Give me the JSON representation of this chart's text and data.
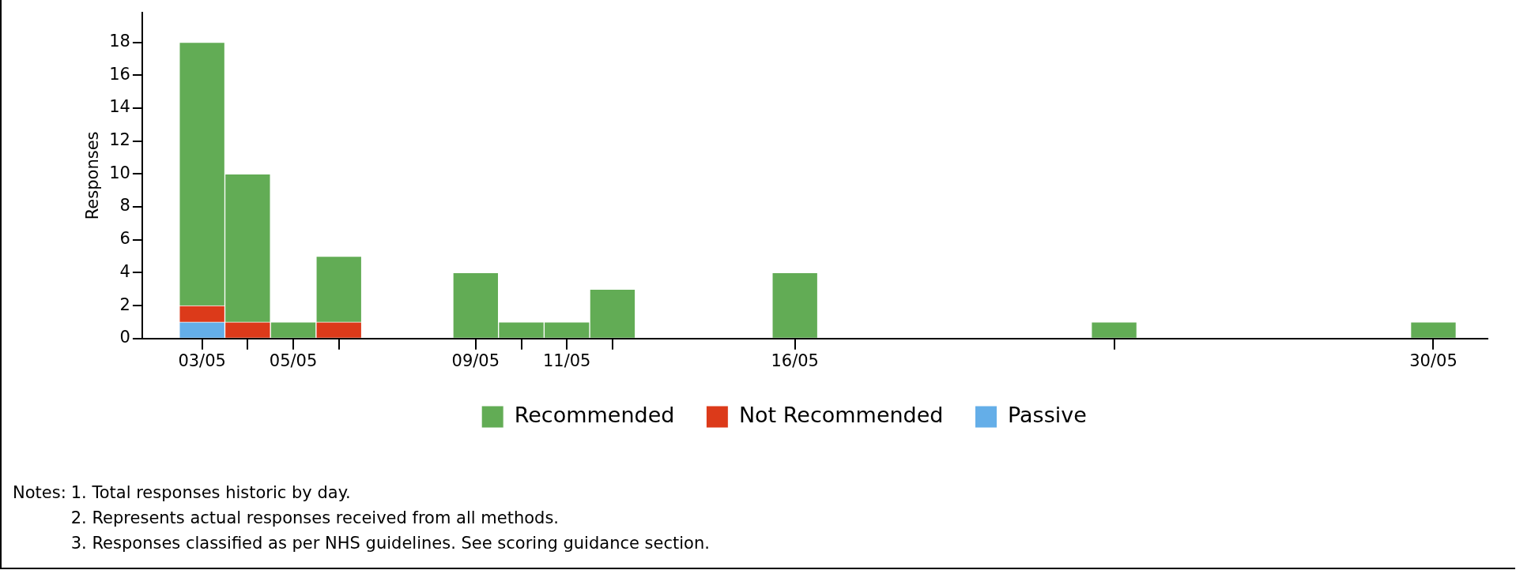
{
  "chart_data": {
    "type": "bar",
    "stacked": true,
    "ylabel": "Responses",
    "legend": "bottom",
    "x": [
      "--05-03",
      "--05-04",
      "--05-05",
      "--05-06",
      "--05-09",
      "--05-10",
      "--05-11",
      "--05-12",
      "--05-16",
      "--05-23",
      "--05-30"
    ],
    "series": [
      {
        "name": "Passive",
        "color": "#64aee8",
        "values": [
          1,
          null,
          null,
          null,
          null,
          null,
          null,
          null,
          null,
          null,
          null
        ]
      },
      {
        "name": "Not Recommended",
        "color": "#dc3a1a",
        "values": [
          1,
          1,
          null,
          1,
          null,
          null,
          null,
          null,
          null,
          null,
          null
        ]
      },
      {
        "name": "Recommended",
        "color": "#62ac55",
        "values": [
          16,
          9,
          1,
          4,
          4,
          1,
          1,
          3,
          4,
          1,
          1
        ]
      }
    ],
    "xlim": [
      "--05-01T16:30",
      "--05-31T04:30"
    ],
    "xticks": [
      {
        "value": "--05-03",
        "label": "03/05"
      },
      {
        "value": "--05-04",
        "label": null
      },
      {
        "value": "--05-05",
        "label": "05/05"
      },
      {
        "value": "--05-06",
        "label": null
      },
      {
        "value": "--05-09",
        "label": "09/05"
      },
      {
        "value": "--05-10",
        "label": null
      },
      {
        "value": "--05-11",
        "label": "11/05"
      },
      {
        "value": "--05-12",
        "label": null
      },
      {
        "value": "--05-16",
        "label": "16/05"
      },
      {
        "value": "--05-23",
        "label": null
      },
      {
        "value": "--05-30",
        "label": "30/05"
      }
    ],
    "ylim": [
      0,
      19.8
    ],
    "yticks": [
      0,
      2,
      4,
      6,
      8,
      10,
      12,
      14,
      16,
      18
    ],
    "annotations": [
      "Notes:",
      "1.  Total responses historic by day.",
      "2.  Represents actual responses received from all methods.",
      "3.  Responses classified as per NHS guidelines. See scoring guidance section."
    ]
  }
}
